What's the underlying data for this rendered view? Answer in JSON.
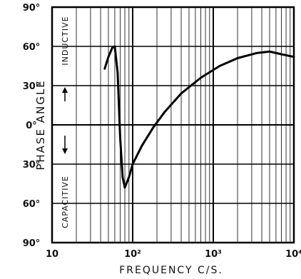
{
  "chart_data": {
    "type": "line",
    "xlabel": "FREQUENCY C/S.",
    "ylabel": "PHASE ANGLE",
    "x_scale": "log",
    "xlim": [
      10,
      10000
    ],
    "ylim": [
      -90,
      90
    ],
    "x_ticks": [
      {
        "value": 10,
        "label": "10"
      },
      {
        "value": 100,
        "label": "10²"
      },
      {
        "value": 1000,
        "label": "10³"
      },
      {
        "value": 10000,
        "label": "10⁴"
      }
    ],
    "y_ticks": [
      {
        "value": 90,
        "label": "90°"
      },
      {
        "value": 60,
        "label": "60°"
      },
      {
        "value": 30,
        "label": "30°"
      },
      {
        "value": 0,
        "label": "0°"
      },
      {
        "value": -30,
        "label": "30°"
      },
      {
        "value": -60,
        "label": "60°"
      },
      {
        "value": -90,
        "label": "90°"
      }
    ],
    "annotations": {
      "upper": "INDUCTIVE",
      "lower": "CAPACITIVE"
    },
    "grid": true,
    "series": [
      {
        "points": [
          {
            "x": 45,
            "y": 43
          },
          {
            "x": 50,
            "y": 52
          },
          {
            "x": 56,
            "y": 59
          },
          {
            "x": 60,
            "y": 60
          },
          {
            "x": 65,
            "y": 40
          },
          {
            "x": 70,
            "y": -10
          },
          {
            "x": 75,
            "y": -40
          },
          {
            "x": 80,
            "y": -48
          },
          {
            "x": 90,
            "y": -40
          },
          {
            "x": 100,
            "y": -30
          },
          {
            "x": 130,
            "y": -16
          },
          {
            "x": 180,
            "y": -2
          },
          {
            "x": 250,
            "y": 10
          },
          {
            "x": 400,
            "y": 24
          },
          {
            "x": 700,
            "y": 36
          },
          {
            "x": 1200,
            "y": 45
          },
          {
            "x": 2000,
            "y": 51
          },
          {
            "x": 3500,
            "y": 55
          },
          {
            "x": 5000,
            "y": 56
          },
          {
            "x": 7000,
            "y": 54
          },
          {
            "x": 10000,
            "y": 52
          }
        ]
      }
    ]
  }
}
